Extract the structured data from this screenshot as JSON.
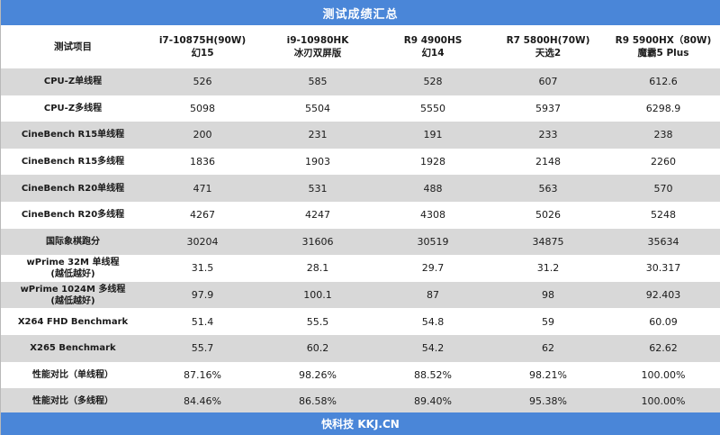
{
  "title": "测试成绩汇总",
  "header": {
    "first": "测试项目",
    "columns": [
      {
        "model": "i7-10875H(90W)",
        "device": "幻15"
      },
      {
        "model": "i9-10980HK",
        "device": "冰刃双屏版"
      },
      {
        "model": "R9 4900HS",
        "device": "幻14"
      },
      {
        "model": "R7 5800H(70W)",
        "device": "天选2"
      },
      {
        "model": "R9 5900HX（80W)",
        "device": "魔霸5 Plus"
      }
    ]
  },
  "rows": [
    {
      "label": "CPU-Z单线程",
      "sub": "",
      "values": [
        "526",
        "585",
        "528",
        "607",
        "612.6"
      ]
    },
    {
      "label": "CPU-Z多线程",
      "sub": "",
      "values": [
        "5098",
        "5504",
        "5550",
        "5937",
        "6298.9"
      ]
    },
    {
      "label": "CineBench R15单线程",
      "sub": "",
      "values": [
        "200",
        "231",
        "191",
        "233",
        "238"
      ]
    },
    {
      "label": "CineBench R15多线程",
      "sub": "",
      "values": [
        "1836",
        "1903",
        "1928",
        "2148",
        "2260"
      ]
    },
    {
      "label": "CineBench R20单线程",
      "sub": "",
      "values": [
        "471",
        "531",
        "488",
        "563",
        "570"
      ]
    },
    {
      "label": "CineBench R20多线程",
      "sub": "",
      "values": [
        "4267",
        "4247",
        "4308",
        "5026",
        "5248"
      ]
    },
    {
      "label": "国际象棋跑分",
      "sub": "",
      "values": [
        "30204",
        "31606",
        "30519",
        "34875",
        "35634"
      ]
    },
    {
      "label": "wPrime 32M 单线程",
      "sub": "(越低越好)",
      "values": [
        "31.5",
        "28.1",
        "29.7",
        "31.2",
        "30.317"
      ]
    },
    {
      "label": "wPrime 1024M 多线程",
      "sub": "(越低越好)",
      "values": [
        "97.9",
        "100.1",
        "87",
        "98",
        "92.403"
      ]
    },
    {
      "label": "X264 FHD Benchmark",
      "sub": "",
      "values": [
        "51.4",
        "55.5",
        "54.8",
        "59",
        "60.09"
      ]
    },
    {
      "label": "X265 Benchmark",
      "sub": "",
      "values": [
        "55.7",
        "60.2",
        "54.2",
        "62",
        "62.62"
      ]
    },
    {
      "label": "性能对比（单线程）",
      "sub": "",
      "values": [
        "87.16%",
        "98.26%",
        "88.52%",
        "98.21%",
        "100.00%"
      ]
    },
    {
      "label": "性能对比（多线程）",
      "sub": "",
      "values": [
        "84.46%",
        "86.58%",
        "89.40%",
        "95.38%",
        "100.00%"
      ]
    }
  ],
  "footer": "快科技 KKJ.CN",
  "colors": {
    "accent": "#4a86d8",
    "row_shade": "#d8d8d8"
  }
}
